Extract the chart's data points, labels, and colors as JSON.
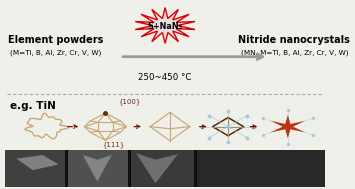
{
  "bg_color": "#f0f0eb",
  "left_label_line1": "Element powders",
  "left_label_line2": "(M=Ti, B, Al, Zr, Cr, V, W)",
  "right_label_line1": "Nitride nanocrystals",
  "right_label_line2": "(MN, M=Ti, B, Al, Zr, Cr, V, W)",
  "arrow_label": "250~450 °C",
  "reagent_label": "S+NaN₃",
  "eg_label": "e.g. TiN",
  "label_100": "{100}",
  "label_111": "{111}",
  "crystal_color": "#c8a878",
  "dark_crystal_color": "#6b2a00",
  "arrow_color": "#7a1500",
  "main_arrow_color": "#999999",
  "dashed_line_color": "#aaaaaa",
  "star_color": "#bb2200",
  "spike_color": "#99ccdd",
  "starburst_fill": "#e8e0e0",
  "starburst_edge": "#dd0000"
}
